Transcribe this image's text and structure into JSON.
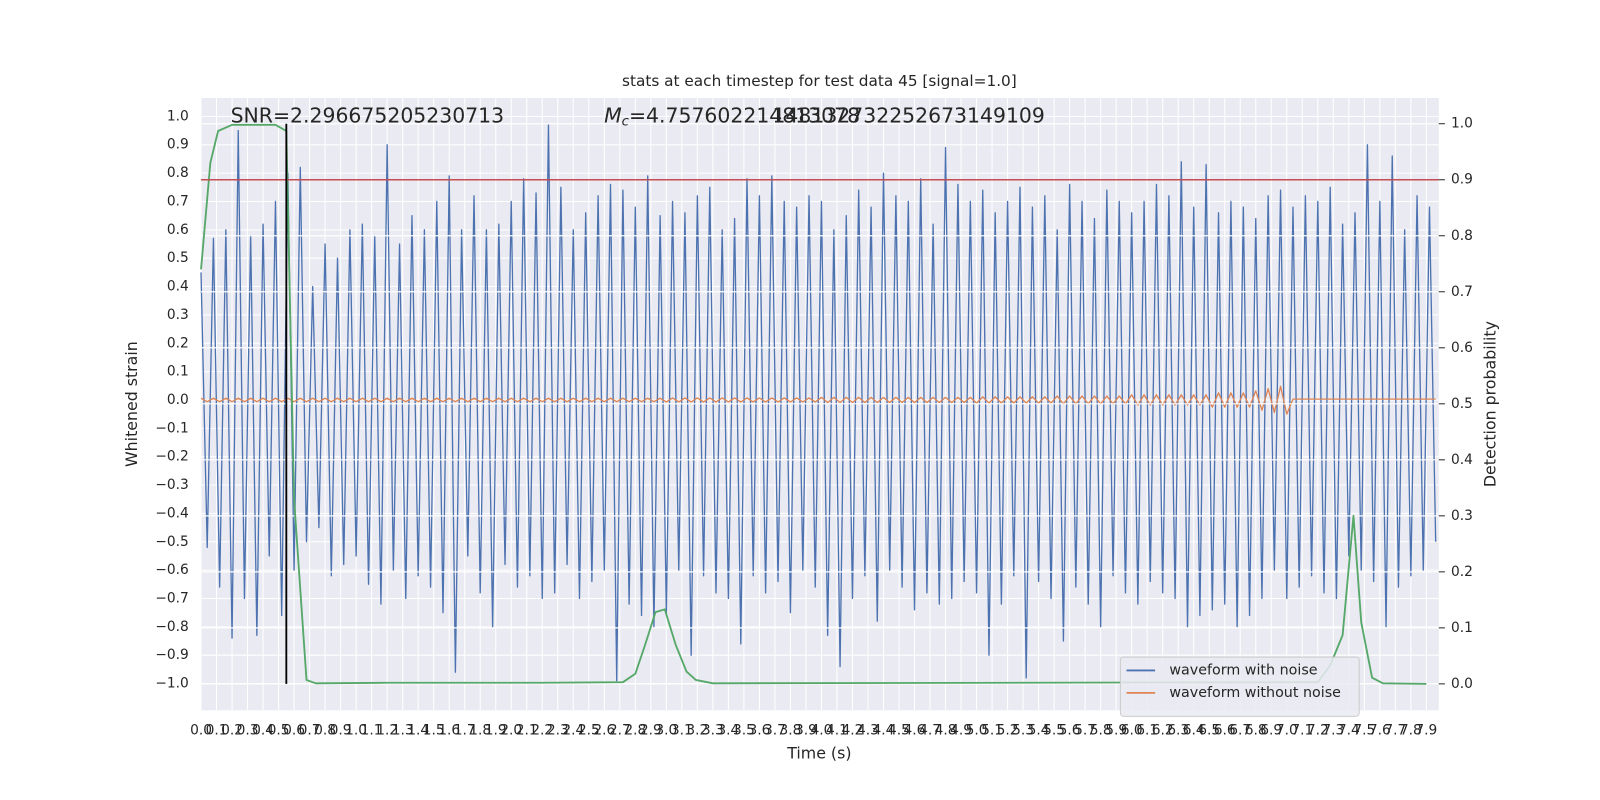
{
  "chart_data": {
    "type": "line",
    "title": "stats at each timestep for test data 45 [signal=1.0]",
    "xlabel": "Time (s)",
    "ylabel": "Whitened strain",
    "y2label": "Detection probability",
    "annotations": [
      "SNR=2.296675205230713",
      "M",
      "c",
      "=4.757602214813078",
      "148132732252673149109"
    ],
    "x": [
      0,
      0.04,
      0.08,
      0.12,
      0.16,
      0.2,
      0.24,
      0.28,
      0.32,
      0.36,
      0.4,
      0.44,
      0.48,
      0.52,
      0.56,
      0.6,
      0.64,
      0.68,
      0.72,
      0.76,
      0.8,
      0.84,
      0.88,
      0.92,
      0.96,
      1,
      1.04,
      1.08,
      1.12,
      1.16,
      1.2,
      1.24,
      1.28,
      1.32,
      1.36,
      1.4,
      1.44,
      1.48,
      1.52,
      1.56,
      1.6,
      1.64,
      1.68,
      1.72,
      1.76,
      1.8,
      1.84,
      1.88,
      1.92,
      1.96,
      2,
      2.04,
      2.08,
      2.12,
      2.16,
      2.2,
      2.24,
      2.28,
      2.32,
      2.36,
      2.4,
      2.44,
      2.48,
      2.52,
      2.56,
      2.6,
      2.64,
      2.68,
      2.72,
      2.76,
      2.8,
      2.84,
      2.88,
      2.92,
      2.96,
      3,
      3.04,
      3.08,
      3.12,
      3.16,
      3.2,
      3.24,
      3.28,
      3.32,
      3.36,
      3.4,
      3.44,
      3.48,
      3.52,
      3.56,
      3.6,
      3.64,
      3.68,
      3.72,
      3.76,
      3.8,
      3.84,
      3.88,
      3.92,
      3.96,
      4,
      4.04,
      4.08,
      4.12,
      4.16,
      4.2,
      4.24,
      4.28,
      4.32,
      4.36,
      4.4,
      4.44,
      4.48,
      4.52,
      4.56,
      4.6,
      4.64,
      4.68,
      4.72,
      4.76,
      4.8,
      4.84,
      4.88,
      4.92,
      4.96,
      5,
      5.04,
      5.08,
      5.12,
      5.16,
      5.2,
      5.24,
      5.28,
      5.32,
      5.36,
      5.4,
      5.44,
      5.48,
      5.52,
      5.56,
      5.6,
      5.64,
      5.68,
      5.72,
      5.76,
      5.8,
      5.84,
      5.88,
      5.92,
      5.96,
      6,
      6.04,
      6.08,
      6.12,
      6.16,
      6.2,
      6.24,
      6.28,
      6.32,
      6.36,
      6.4,
      6.44,
      6.48,
      6.52,
      6.56,
      6.6,
      6.64,
      6.68,
      6.72,
      6.76,
      6.8,
      6.84,
      6.88,
      6.92,
      6.96,
      7,
      7.04,
      7.08,
      7.12,
      7.16,
      7.2,
      7.24,
      7.28,
      7.32,
      7.36,
      7.4,
      7.44,
      7.48,
      7.52,
      7.56,
      7.6,
      7.64,
      7.68,
      7.72,
      7.76,
      7.8,
      7.84,
      7.88,
      7.92,
      7.96
    ],
    "series": [
      {
        "name": "waveform with noise",
        "color": "#4c72b0",
        "values": [
          0.45,
          -0.52,
          0.57,
          -0.66,
          0.6,
          -0.84,
          0.95,
          -0.7,
          0.58,
          -0.83,
          0.62,
          -0.55,
          0.7,
          -0.76,
          0.8,
          -0.6,
          0.82,
          -0.5,
          0.4,
          -0.45,
          0.55,
          -0.62,
          0.5,
          -0.58,
          0.6,
          -0.55,
          0.62,
          -0.65,
          0.58,
          -0.72,
          0.9,
          -0.6,
          0.55,
          -0.7,
          0.65,
          -0.62,
          0.6,
          -0.66,
          0.7,
          -0.75,
          0.79,
          -0.96,
          0.6,
          -0.55,
          0.72,
          -0.68,
          0.6,
          -0.8,
          0.62,
          -0.58,
          0.7,
          -0.66,
          0.78,
          -0.62,
          0.73,
          -0.7,
          0.97,
          -0.68,
          0.75,
          -0.58,
          0.6,
          -0.7,
          0.66,
          -0.64,
          0.72,
          -0.6,
          0.76,
          -0.99,
          0.74,
          -0.72,
          0.68,
          -0.76,
          0.79,
          -0.8,
          0.65,
          -0.75,
          0.7,
          -0.6,
          0.66,
          -0.9,
          0.72,
          -0.62,
          0.75,
          -0.68,
          0.6,
          -0.7,
          0.64,
          -0.86,
          0.78,
          -0.62,
          0.72,
          -0.68,
          0.79,
          -0.64,
          0.7,
          -0.75,
          0.68,
          -0.6,
          0.72,
          -0.66,
          0.7,
          -0.83,
          0.6,
          -0.94,
          0.65,
          -0.7,
          0.74,
          -0.62,
          0.68,
          -0.78,
          0.8,
          -0.6,
          0.72,
          -0.66,
          0.7,
          -0.74,
          0.78,
          -0.68,
          0.62,
          -0.72,
          0.89,
          -0.7,
          0.76,
          -0.64,
          0.7,
          -0.68,
          0.74,
          -0.9,
          0.66,
          -0.72,
          0.7,
          -0.62,
          0.75,
          -0.98,
          0.68,
          -0.64,
          0.72,
          -0.7,
          0.6,
          -0.85,
          0.76,
          -0.66,
          0.7,
          -0.72,
          0.64,
          -0.8,
          0.74,
          -0.62,
          0.7,
          -0.68,
          0.66,
          -0.72,
          0.7,
          -0.64,
          0.76,
          -0.68,
          0.72,
          -0.7,
          0.84,
          -0.8,
          0.68,
          -0.76,
          0.83,
          -0.74,
          0.66,
          -0.72,
          0.7,
          -0.8,
          0.68,
          -0.76,
          0.64,
          -0.7,
          0.72,
          -0.6,
          0.74,
          -0.7,
          0.68,
          -0.66,
          0.72,
          -0.62,
          0.7,
          -0.68,
          0.75,
          -0.7,
          0.62,
          -0.55,
          0.66,
          -0.6,
          0.9,
          -0.64,
          0.7,
          -0.8,
          0.86,
          -0.66,
          0.6,
          -0.62,
          0.72,
          -0.6,
          0.68,
          -0.5
        ]
      },
      {
        "name": "waveform without noise",
        "color": "#dd8452",
        "values": [
          0.006,
          -0.006,
          0.006,
          -0.006,
          0.006,
          -0.006,
          0.006,
          -0.006,
          0.006,
          -0.006,
          0.006,
          -0.006,
          0.006,
          -0.006,
          0.006,
          -0.006,
          0.006,
          -0.006,
          0.006,
          -0.006,
          0.006,
          -0.006,
          0.006,
          -0.006,
          0.006,
          -0.006,
          0.006,
          -0.006,
          0.006,
          -0.006,
          0.006,
          -0.006,
          0.006,
          -0.006,
          0.006,
          -0.006,
          0.006,
          -0.006,
          0.006,
          -0.006,
          0.006,
          -0.006,
          0.006,
          -0.006,
          0.006,
          -0.006,
          0.006,
          -0.006,
          0.006,
          -0.006,
          0.006,
          -0.006,
          0.006,
          -0.006,
          0.006,
          -0.006,
          0.006,
          -0.006,
          0.006,
          -0.006,
          0.006,
          -0.006,
          0.006,
          -0.006,
          0.006,
          -0.006,
          0.006,
          -0.006,
          0.006,
          -0.006,
          0.006,
          -0.006,
          0.006,
          -0.006,
          0.006,
          -0.007,
          0.007,
          -0.007,
          0.007,
          -0.007,
          0.007,
          -0.007,
          0.007,
          -0.007,
          0.007,
          -0.007,
          0.007,
          -0.007,
          0.007,
          -0.007,
          0.007,
          -0.007,
          0.007,
          -0.007,
          0.007,
          -0.007,
          0.007,
          -0.007,
          0.007,
          -0.007,
          0.009,
          -0.009,
          0.009,
          -0.009,
          0.009,
          -0.009,
          0.009,
          -0.009,
          0.009,
          -0.009,
          0.009,
          -0.009,
          0.009,
          -0.009,
          0.009,
          -0.009,
          0.009,
          -0.009,
          0.009,
          -0.009,
          0.009,
          -0.009,
          0.009,
          -0.009,
          0.009,
          -0.011,
          0.011,
          -0.011,
          0.011,
          -0.011,
          0.011,
          -0.011,
          0.011,
          -0.011,
          0.011,
          -0.011,
          0.011,
          -0.011,
          0.014,
          -0.014,
          0.014,
          -0.014,
          0.014,
          -0.014,
          0.014,
          -0.014,
          0.014,
          -0.014,
          0.014,
          -0.014,
          0.018,
          -0.018,
          0.018,
          -0.018,
          0.018,
          -0.018,
          0.018,
          -0.018,
          0.018,
          -0.018,
          0.018,
          -0.018,
          0.018,
          -0.025,
          0.025,
          -0.025,
          0.025,
          -0.025,
          0.025,
          -0.025,
          0.032,
          -0.036,
          0.04,
          -0.044,
          0.048,
          -0.05,
          0.003,
          0.003,
          0.003,
          0.003,
          0.003,
          0.003,
          0.003,
          0.003,
          0.003,
          0.003,
          0.003,
          0.003,
          0.003,
          0.003,
          0.003,
          0.003,
          0.003,
          0.003,
          0.003,
          0.003,
          0.003,
          0.003,
          0.003,
          0.003
        ]
      },
      {
        "color": "#55a868",
        "axis": "y2",
        "x": [
          0,
          0.06,
          0.11,
          0.2,
          0.48,
          0.55,
          0.6,
          0.68,
          0.74,
          1.2,
          2.2,
          2.72,
          2.8,
          2.86,
          2.93,
          2.99,
          3.06,
          3.13,
          3.19,
          3.3,
          7.2,
          7.28,
          7.36,
          7.43,
          7.48,
          7.55,
          7.62,
          7.9
        ],
        "values": [
          0.74,
          0.93,
          0.987,
          0.998,
          0.998,
          0.987,
          0.33,
          0.007,
          0.001,
          0.002,
          0.002,
          0.003,
          0.018,
          0.067,
          0.128,
          0.133,
          0.07,
          0.022,
          0.007,
          0.001,
          0.003,
          0.033,
          0.087,
          0.3,
          0.11,
          0.011,
          0.001,
          0
        ]
      }
    ],
    "hline": {
      "y": 0.9,
      "axis": "y2",
      "color": "#c44e52"
    },
    "vline": {
      "x": 0.55,
      "ymin": 0,
      "ymax": 1,
      "axis": "y2",
      "color": "#000000"
    },
    "xlim": [
      0,
      7.98
    ],
    "ylim": [
      -1.094,
      1.065
    ],
    "y2lim": [
      -0.047,
      1.046
    ],
    "xticks": [
      {
        "value": 0,
        "label": "0.0"
      },
      0.1,
      0.2,
      0.3,
      0.4,
      0.5,
      0.6,
      0.7,
      0.8,
      0.9,
      {
        "value": 1,
        "label": "1.0"
      },
      1.1,
      1.2,
      1.3,
      1.4,
      1.5,
      1.6,
      1.7,
      1.8,
      1.9,
      {
        "value": 2,
        "label": "2.0"
      },
      2.1,
      2.2,
      2.3,
      2.4,
      2.5,
      2.6,
      2.7,
      2.8,
      2.9,
      {
        "value": 3,
        "label": "3.0"
      },
      3.1,
      3.2,
      3.3,
      3.4,
      3.5,
      3.6,
      3.7,
      3.8,
      3.9,
      {
        "value": 4,
        "label": "4.0"
      },
      4.1,
      4.2,
      4.3,
      4.4,
      4.5,
      4.6,
      4.7,
      4.8,
      4.9,
      {
        "value": 5,
        "label": "5.0"
      },
      5.1,
      5.2,
      5.3,
      5.4,
      5.5,
      5.6,
      5.7,
      5.8,
      5.9,
      {
        "value": 6,
        "label": "6.0"
      },
      6.1,
      6.2,
      6.3,
      6.4,
      6.5,
      6.6,
      6.7,
      6.8,
      6.9,
      {
        "value": 7,
        "label": "7.0"
      },
      7.1,
      7.2,
      7.3,
      7.4,
      7.5,
      7.6,
      7.7,
      7.8,
      7.9
    ],
    "yticks": [
      {
        "value": -1,
        "label": "−1.0"
      },
      {
        "value": -0.9,
        "label": "−0.9"
      },
      {
        "value": -0.8,
        "label": "−0.8"
      },
      {
        "value": -0.7,
        "label": "−0.7"
      },
      {
        "value": -0.6,
        "label": "−0.6"
      },
      {
        "value": -0.5,
        "label": "−0.5"
      },
      {
        "value": -0.4,
        "label": "−0.4"
      },
      {
        "value": -0.3,
        "label": "−0.3"
      },
      {
        "value": -0.2,
        "label": "−0.2"
      },
      {
        "value": -0.1,
        "label": "−0.1"
      },
      {
        "value": 0,
        "label": "0.0"
      },
      0.1,
      0.2,
      0.3,
      0.4,
      0.5,
      0.6,
      0.7,
      0.8,
      0.9,
      {
        "value": 1,
        "label": "1.0"
      }
    ],
    "y2ticks": [
      {
        "value": 0,
        "label": "0.0"
      },
      0.1,
      0.2,
      0.3,
      0.4,
      0.5,
      0.6,
      0.7,
      0.8,
      0.9,
      {
        "value": 1,
        "label": "1.0"
      }
    ],
    "grid": true,
    "legend": "lower right"
  }
}
